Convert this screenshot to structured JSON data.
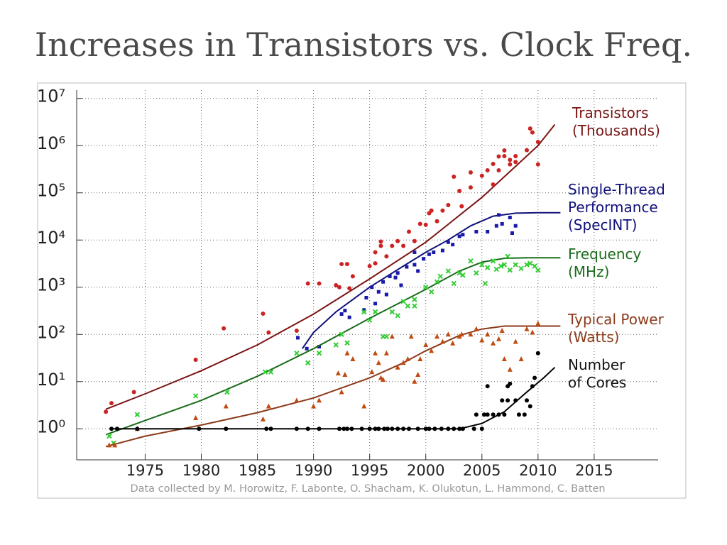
{
  "chart_data": {
    "type": "scatter",
    "title": "Increases in Transistors vs. Clock Freq.",
    "footnote": "Data collected by M. Horowitz, F. Labonte, O. Shacham, K. Olukotun, L. Hammond, C. Batten",
    "xlim": [
      1968.9,
      2020.7
    ],
    "xticks": [
      1975,
      1980,
      1985,
      1990,
      1995,
      2000,
      2005,
      2010,
      2015
    ],
    "ylim": [
      0.22,
      15000000
    ],
    "log_y": true,
    "grid": true,
    "yticks": [
      {
        "value": 1,
        "label": "10⁰"
      },
      {
        "value": 10,
        "label": "10¹"
      },
      {
        "value": 100,
        "label": "10²"
      },
      {
        "value": 1000,
        "label": "10³"
      },
      {
        "value": 10000,
        "label": "10⁴"
      },
      {
        "value": 100000,
        "label": "10⁵"
      },
      {
        "value": 1000000,
        "label": "10⁶"
      },
      {
        "value": 10000000,
        "label": "10⁷"
      }
    ],
    "series": [
      {
        "name": "Transistors\n(Thousands)",
        "marker": "circle",
        "color": "#cc2222",
        "line_color": "#7a1414",
        "x": [
          1971.5,
          1972,
          1974,
          1979.5,
          1982,
          1985.5,
          1986,
          1988.5,
          1989.5,
          1990.5,
          1992,
          1992.3,
          1992.5,
          1993,
          1993.2,
          1993.5,
          1995,
          1995.5,
          1995.5,
          1996,
          1996,
          1996.5,
          1997,
          1997.5,
          1998,
          1998.5,
          1999,
          1999.5,
          2000,
          2000.3,
          2000.5,
          2001,
          2001.5,
          2002,
          2002.5,
          2003,
          2003.2,
          2004,
          2004,
          2005,
          2005.5,
          2006,
          2006,
          2006.5,
          2006.5,
          2007,
          2007,
          2007.5,
          2007.5,
          2008,
          2008,
          2009,
          2009.3,
          2009.5,
          2010,
          2010
        ],
        "values": [
          2.3,
          3.5,
          6,
          29,
          134,
          275,
          110,
          120,
          1200,
          1200,
          1100,
          1000,
          3100,
          3100,
          950,
          1700,
          2800,
          3200,
          5500,
          7500,
          9300,
          4500,
          7500,
          9500,
          7500,
          15000,
          9500,
          22000,
          21000,
          37000,
          42000,
          25000,
          42000,
          55000,
          220000,
          110000,
          52000,
          130000,
          270000,
          230000,
          300000,
          150000,
          410000,
          590000,
          300000,
          600000,
          790000,
          500000,
          400000,
          600000,
          450000,
          800000,
          2300000,
          1900000,
          400000,
          1200000
        ],
        "trend": {
          "x": [
            1971.5,
            1975,
            1980,
            1985,
            1990,
            1995,
            2000,
            2005,
            2010,
            2011.5
          ],
          "values": [
            2.6,
            5.5,
            17,
            60,
            270,
            1500,
            9000,
            80000,
            1000000,
            2800000
          ]
        }
      },
      {
        "name": "Single-Thread\nPerformance\n(SpecINT)",
        "marker": "square",
        "color": "#1a1aaa",
        "line_color": "#10107a",
        "x": [
          1988.6,
          1989.4,
          1990.5,
          1992.5,
          1992.8,
          1993.2,
          1994.5,
          1994.7,
          1995.2,
          1995.5,
          1995.8,
          1996.2,
          1996.5,
          1996.8,
          1997.3,
          1997.5,
          1997.8,
          1998.3,
          1999,
          1999,
          1999.3,
          1999.8,
          2000.3,
          2000.7,
          2001.5,
          2002,
          2002.4,
          2003,
          2003.3,
          2004.5,
          2005.5,
          2006.3,
          2006.5,
          2006.8,
          2007.5,
          2007.7,
          2008
        ],
        "values": [
          85,
          50,
          55,
          270,
          320,
          230,
          330,
          600,
          1000,
          450,
          800,
          1300,
          700,
          1700,
          1600,
          2000,
          1100,
          2700,
          5500,
          3000,
          2200,
          4000,
          5000,
          5500,
          6000,
          9000,
          8000,
          12000,
          13000,
          15000,
          15000,
          20000,
          34000,
          22000,
          30000,
          14000,
          20000
        ],
        "trend": {
          "x": [
            1989,
            1990,
            1992,
            1995,
            1998,
            2000,
            2002,
            2004,
            2006,
            2008,
            2010,
            2012
          ],
          "values": [
            50,
            110,
            300,
            1000,
            2800,
            5500,
            10000,
            20000,
            32000,
            37000,
            38000,
            38000
          ]
        }
      },
      {
        "name": "Frequency\n(MHz)",
        "marker": "x",
        "color": "#33cc33",
        "line_color": "#1a6b1a",
        "x": [
          1971.8,
          1972.2,
          1974.3,
          1979.5,
          1982.3,
          1985.7,
          1986.2,
          1988.5,
          1989.5,
          1990.5,
          1992,
          1992.5,
          1993,
          1994.5,
          1995,
          1995.5,
          1996.2,
          1996.5,
          1997,
          1997.5,
          1998,
          1998.4,
          1999,
          1999,
          2000,
          2000.5,
          2001,
          2001.3,
          2002,
          2002.5,
          2003,
          2003.3,
          2004,
          2004.5,
          2005,
          2005.3,
          2005.5,
          2006,
          2006.3,
          2006.7,
          2007,
          2007.3,
          2007.5,
          2008,
          2008.5,
          2009,
          2009.3,
          2009.7,
          2010
        ],
        "values": [
          0.7,
          0.5,
          2,
          5,
          6,
          16,
          16,
          40,
          25,
          40,
          60,
          100,
          66,
          300,
          200,
          300,
          90,
          90,
          300,
          250,
          500,
          400,
          550,
          400,
          1000,
          800,
          1300,
          1700,
          2200,
          1200,
          2000,
          1800,
          3600,
          2000,
          3000,
          1200,
          2600,
          3600,
          2400,
          2800,
          3000,
          4500,
          2300,
          3000,
          2500,
          3000,
          3200,
          2800,
          2300
        ],
        "trend": {
          "x": [
            1971.5,
            1975,
            1980,
            1985,
            1990,
            1995,
            2000,
            2003,
            2005,
            2007,
            2009,
            2012
          ],
          "values": [
            0.75,
            1.5,
            4,
            13,
            50,
            220,
            900,
            2200,
            3400,
            4100,
            4200,
            4200
          ]
        }
      },
      {
        "name": "Typical Power\n(Watts)",
        "marker": "triangle",
        "color": "#c04a10",
        "line_color": "#8b3a1a",
        "x": [
          1971.8,
          1972.3,
          1974.3,
          1979.5,
          1982.2,
          1985.5,
          1986,
          1988.5,
          1990,
          1990.5,
          1992.2,
          1992.5,
          1992.8,
          1993,
          1993.5,
          1994.5,
          1995.2,
          1995.5,
          1995.8,
          1996,
          1996.2,
          1996.5,
          1997,
          1997.5,
          1998,
          1998.4,
          1998.7,
          1999,
          1999.3,
          1999.5,
          2000,
          2000.5,
          2001,
          2001.5,
          2002,
          2002.4,
          2003,
          2003.2,
          2004,
          2004.5,
          2005,
          2005.5,
          2006,
          2006.5,
          2006.8,
          2007,
          2007.5,
          2008,
          2008.5,
          2009,
          2009.5,
          2010
        ],
        "values": [
          0.45,
          0.45,
          1,
          1.7,
          3,
          1.6,
          3,
          4,
          3,
          4,
          15,
          6,
          14,
          40,
          30,
          3,
          16,
          40,
          25,
          12,
          11,
          40,
          90,
          20,
          25,
          30,
          90,
          10,
          14,
          30,
          60,
          45,
          90,
          70,
          100,
          65,
          90,
          100,
          100,
          130,
          75,
          100,
          65,
          80,
          120,
          30,
          18,
          70,
          30,
          130,
          110,
          170
        ],
        "trend": {
          "x": [
            1971.5,
            1975,
            1980,
            1985,
            1990,
            1995,
            1998,
            2000,
            2003,
            2005,
            2007,
            2010,
            2012
          ],
          "values": [
            0.42,
            0.7,
            1.2,
            2.2,
            4.5,
            12,
            25,
            45,
            95,
            130,
            150,
            150,
            150
          ]
        }
      },
      {
        "name": "Number\nof Cores",
        "marker": "circle",
        "color": "#000000",
        "line_color": "#000000",
        "x": [
          1972,
          1972.5,
          1974.3,
          1979.8,
          1982.2,
          1985.8,
          1986.2,
          1988.5,
          1989.5,
          1990.5,
          1992.3,
          1992.7,
          1993,
          1993.4,
          1994.3,
          1995,
          1995.5,
          1995.8,
          1996.3,
          1996.6,
          1997,
          1997.5,
          1998,
          1998.5,
          1999.3,
          2000,
          2000.3,
          2000.8,
          2001.4,
          2002,
          2002.5,
          2003,
          2003.3,
          2004.3,
          2004.5,
          2005,
          2005.2,
          2005.5,
          2005.5,
          2006,
          2006.5,
          2006.8,
          2007,
          2007.3,
          2007.3,
          2007.5,
          2008,
          2008.3,
          2008.8,
          2009,
          2009.3,
          2009.5,
          2009.7,
          2010
        ],
        "values": [
          1,
          1,
          1,
          1,
          1,
          1,
          1,
          1,
          1,
          1,
          1,
          1,
          1,
          1,
          1,
          1,
          1,
          1,
          1,
          1,
          1,
          1,
          1,
          1,
          1,
          1,
          1,
          1,
          1,
          1,
          1,
          1,
          1,
          1,
          2,
          1,
          2,
          2,
          8,
          2,
          2,
          4,
          2,
          4,
          8,
          9,
          4,
          2,
          2,
          4,
          3,
          8,
          12,
          40
        ],
        "trend": {
          "x": [
            1972,
            2003,
            2005,
            2007,
            2009,
            2010.5,
            2011.5
          ],
          "values": [
            1,
            1,
            1.3,
            2.3,
            6,
            12,
            20
          ]
        }
      }
    ]
  }
}
